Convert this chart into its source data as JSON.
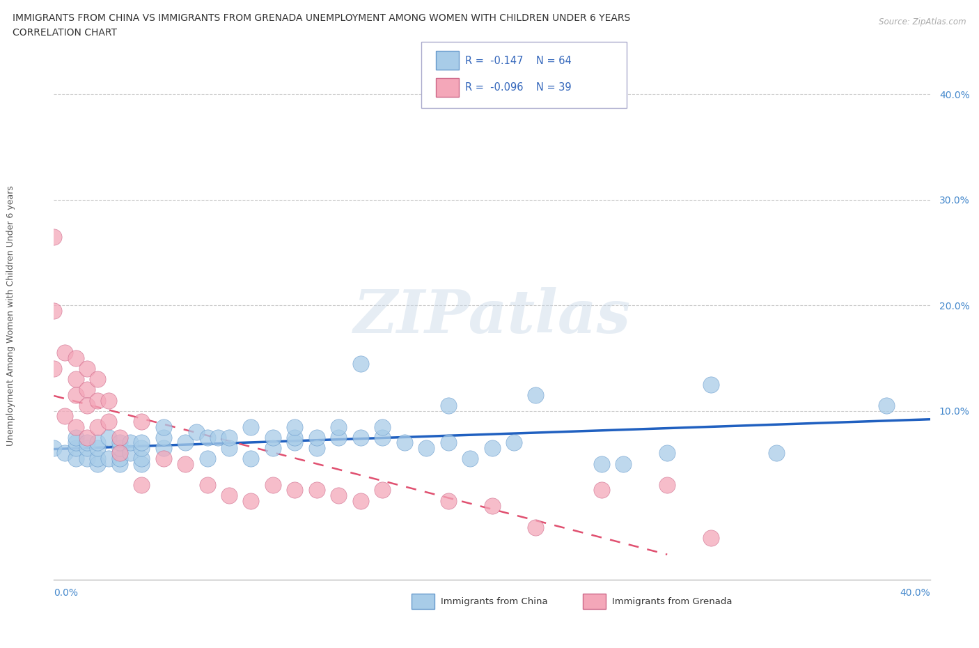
{
  "title_line1": "IMMIGRANTS FROM CHINA VS IMMIGRANTS FROM GRENADA UNEMPLOYMENT AMONG WOMEN WITH CHILDREN UNDER 6 YEARS",
  "title_line2": "CORRELATION CHART",
  "source": "Source: ZipAtlas.com",
  "ylabel": "Unemployment Among Women with Children Under 6 years",
  "ytick_values": [
    0.1,
    0.2,
    0.3,
    0.4
  ],
  "xlim": [
    0.0,
    0.4
  ],
  "ylim": [
    -0.06,
    0.44
  ],
  "legend_china": "Immigrants from China",
  "legend_grenada": "Immigrants from Grenada",
  "R_china": -0.147,
  "N_china": 64,
  "R_grenada": -0.096,
  "N_grenada": 39,
  "color_china": "#a8cce8",
  "color_grenada": "#f4a7b9",
  "color_china_line": "#2060c0",
  "color_grenada_line": "#e05070",
  "watermark": "ZIPatlas",
  "china_x": [
    0.0,
    0.005,
    0.01,
    0.01,
    0.01,
    0.01,
    0.015,
    0.015,
    0.015,
    0.02,
    0.02,
    0.02,
    0.02,
    0.025,
    0.025,
    0.03,
    0.03,
    0.03,
    0.03,
    0.035,
    0.035,
    0.04,
    0.04,
    0.04,
    0.04,
    0.05,
    0.05,
    0.05,
    0.06,
    0.065,
    0.07,
    0.07,
    0.075,
    0.08,
    0.08,
    0.09,
    0.09,
    0.1,
    0.1,
    0.11,
    0.11,
    0.11,
    0.12,
    0.12,
    0.13,
    0.13,
    0.14,
    0.14,
    0.15,
    0.15,
    0.16,
    0.17,
    0.18,
    0.18,
    0.19,
    0.2,
    0.21,
    0.22,
    0.25,
    0.26,
    0.28,
    0.3,
    0.33,
    0.38
  ],
  "china_y": [
    0.065,
    0.06,
    0.055,
    0.065,
    0.07,
    0.075,
    0.055,
    0.065,
    0.07,
    0.05,
    0.055,
    0.065,
    0.07,
    0.055,
    0.075,
    0.05,
    0.055,
    0.065,
    0.07,
    0.06,
    0.07,
    0.05,
    0.055,
    0.065,
    0.07,
    0.065,
    0.075,
    0.085,
    0.07,
    0.08,
    0.055,
    0.075,
    0.075,
    0.065,
    0.075,
    0.055,
    0.085,
    0.065,
    0.075,
    0.07,
    0.075,
    0.085,
    0.065,
    0.075,
    0.075,
    0.085,
    0.075,
    0.145,
    0.075,
    0.085,
    0.07,
    0.065,
    0.105,
    0.07,
    0.055,
    0.065,
    0.07,
    0.115,
    0.05,
    0.05,
    0.06,
    0.125,
    0.06,
    0.105
  ],
  "grenada_x": [
    0.0,
    0.0,
    0.0,
    0.005,
    0.005,
    0.01,
    0.01,
    0.01,
    0.01,
    0.015,
    0.015,
    0.015,
    0.015,
    0.02,
    0.02,
    0.02,
    0.025,
    0.025,
    0.03,
    0.03,
    0.04,
    0.04,
    0.05,
    0.06,
    0.07,
    0.08,
    0.09,
    0.1,
    0.11,
    0.12,
    0.13,
    0.14,
    0.15,
    0.18,
    0.2,
    0.22,
    0.25,
    0.28,
    0.3
  ],
  "grenada_y": [
    0.265,
    0.195,
    0.14,
    0.155,
    0.095,
    0.15,
    0.13,
    0.115,
    0.085,
    0.14,
    0.12,
    0.105,
    0.075,
    0.13,
    0.11,
    0.085,
    0.11,
    0.09,
    0.075,
    0.06,
    0.09,
    0.03,
    0.055,
    0.05,
    0.03,
    0.02,
    0.015,
    0.03,
    0.025,
    0.025,
    0.02,
    0.015,
    0.025,
    0.015,
    0.01,
    -0.01,
    0.025,
    0.03,
    -0.02
  ]
}
